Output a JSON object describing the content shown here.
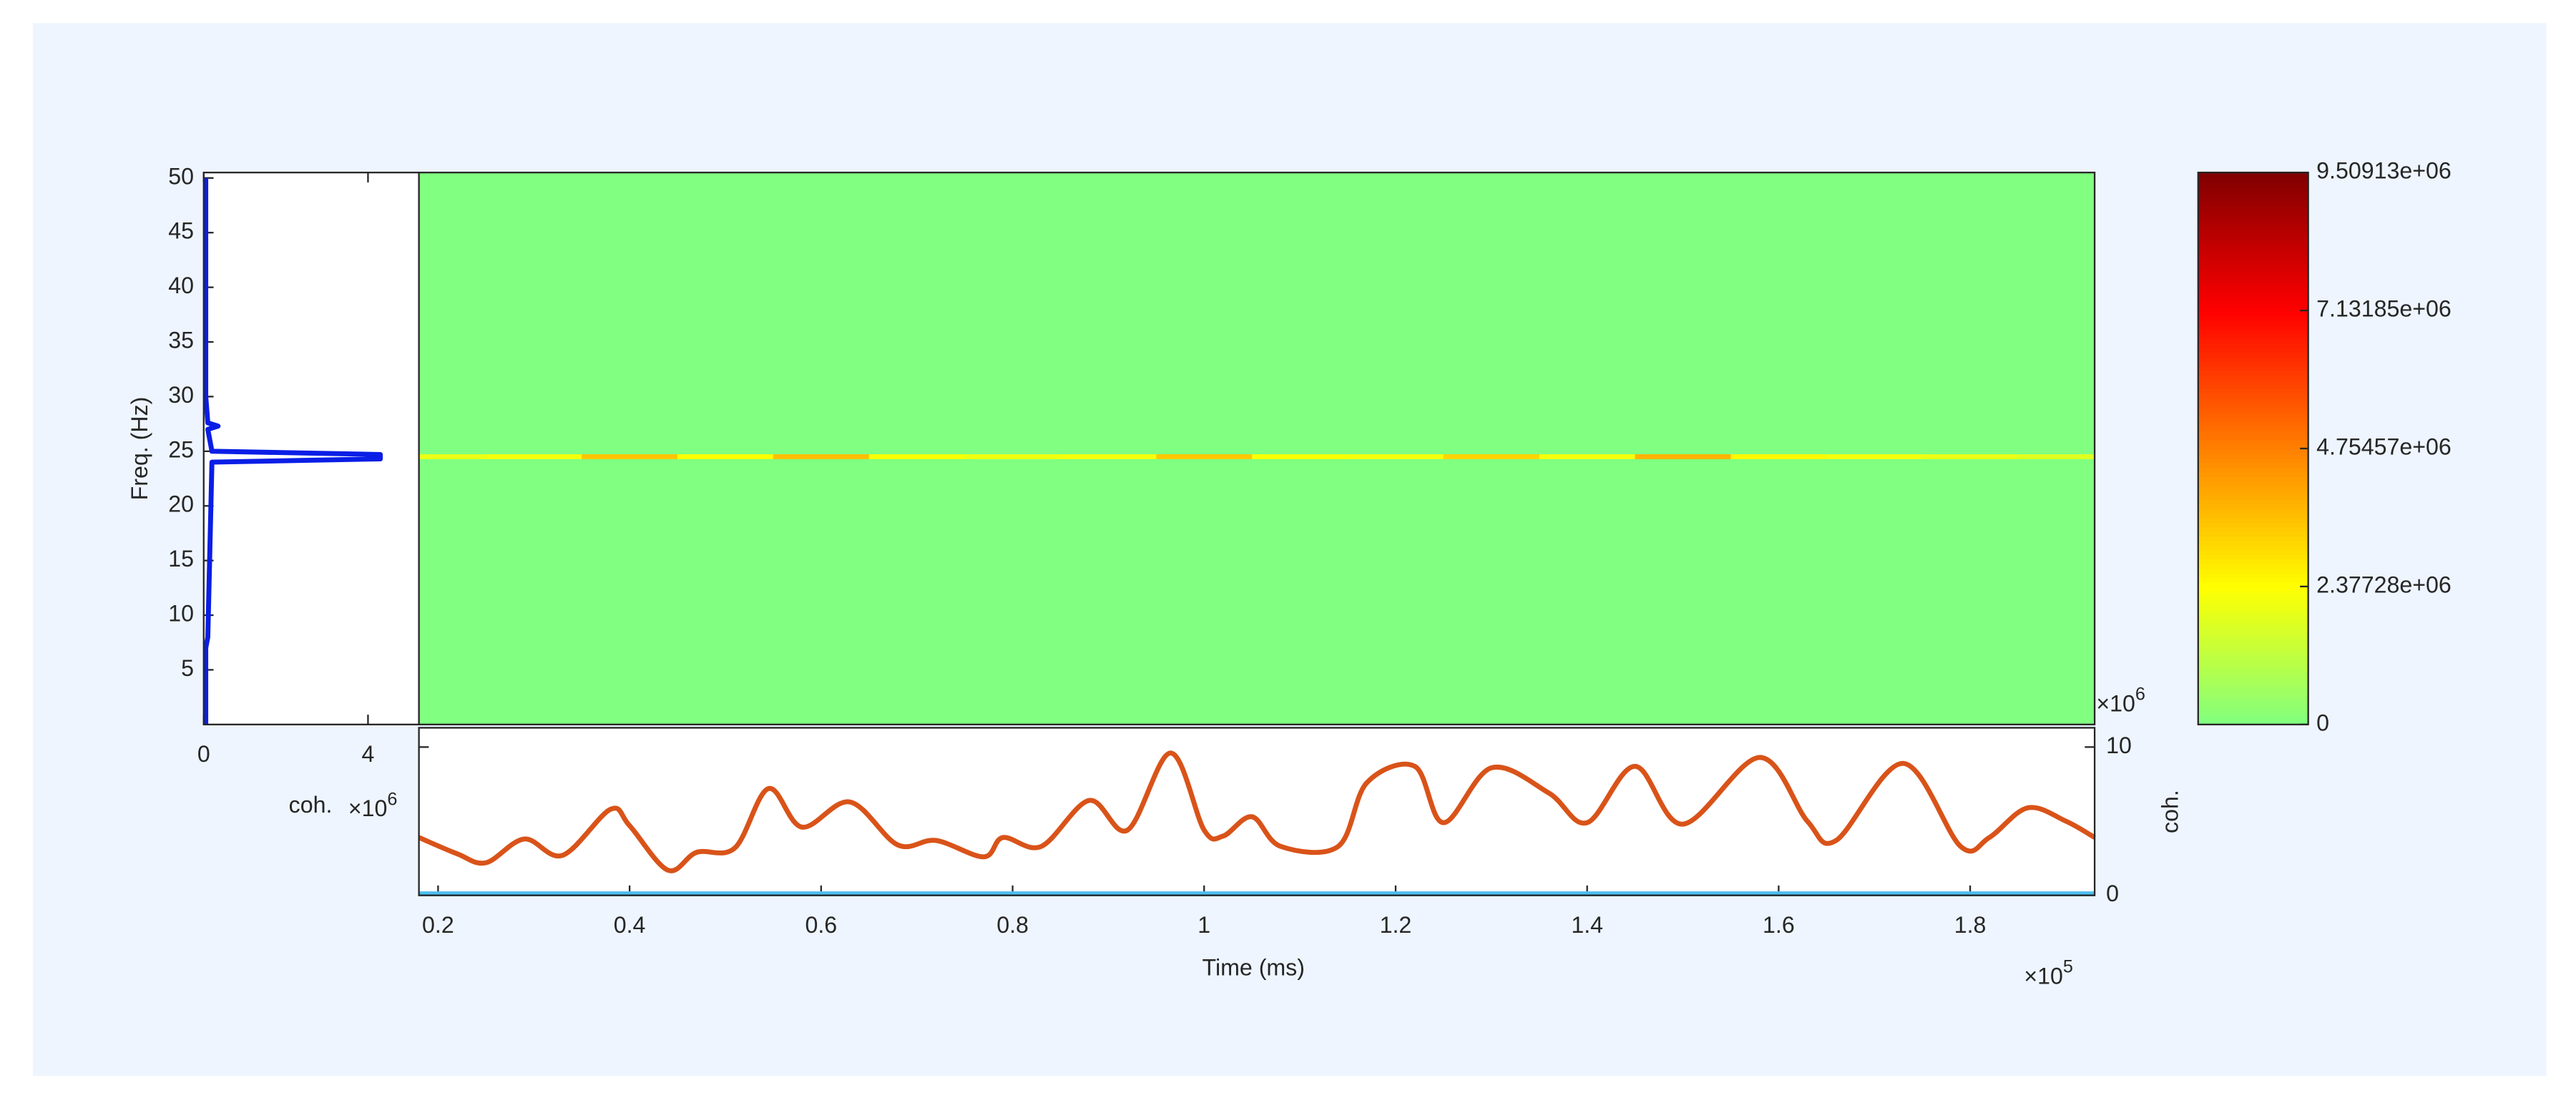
{
  "chart_data": [
    {
      "type": "line",
      "orientation": "horizontal",
      "ylabel": "Freq. (Hz)",
      "xlabel": "coh.",
      "x_multiplier": "×10",
      "x_multiplier_power": "6",
      "xlim": [
        0,
        5.24
      ],
      "xticks": [
        0,
        4
      ],
      "ylim": [
        0,
        50.5
      ],
      "yticks": [
        5,
        10,
        15,
        20,
        25,
        30,
        35,
        40,
        45,
        50
      ],
      "color": "#0a1ee6",
      "y": [
        0,
        7,
        8,
        24,
        24.3,
        24.5,
        24.7,
        25,
        27,
        27.3,
        27.6,
        30,
        50
      ],
      "values": [
        0.05,
        0.05,
        0.1,
        0.2,
        4.3,
        4.3,
        4.3,
        0.2,
        0.1,
        0.35,
        0.1,
        0.05,
        0.05
      ]
    },
    {
      "type": "heatmap",
      "xlim": [
        0.18,
        1.93
      ],
      "ylim": [
        0,
        50.5
      ],
      "clim": [
        0,
        9509130
      ],
      "colormap": [
        "#80ff80",
        "#ffff00",
        "#ff8000",
        "#ff0000",
        "#800000"
      ],
      "cticks": [
        0,
        {
          "value": 2377280,
          "label": "2.37728e+06"
        },
        {
          "value": 4754570,
          "label": "4.75457e+06"
        },
        {
          "value": 7131850,
          "label": "7.13185e+06"
        },
        {
          "value": 9509130,
          "label": "9.50913e+06"
        }
      ],
      "x": [
        0.2,
        0.3,
        0.4,
        0.5,
        0.6,
        0.7,
        0.8,
        0.9,
        1.0,
        1.1,
        1.2,
        1.3,
        1.4,
        1.5,
        1.6,
        1.7,
        1.8,
        1.9
      ],
      "y": [
        24.5
      ],
      "values": [
        [
          2000000,
          2200000,
          3500000,
          2400000,
          3600000,
          2300000,
          2100000,
          2200000,
          3400000,
          2300000,
          2200000,
          3200000,
          2200000,
          3800000,
          2500000,
          2200000,
          2000000,
          1800000
        ]
      ]
    },
    {
      "type": "line",
      "xlabel": "Time (ms)",
      "x_multiplier": "×10",
      "x_multiplier_power": "5",
      "y2label": "coh.",
      "y2_multiplier": "×10",
      "y2_multiplier_power": "6",
      "xlim": [
        0.18,
        1.93
      ],
      "xticks": [
        0.2,
        0.4,
        0.6,
        0.8,
        1,
        1.2,
        1.4,
        1.6,
        1.8
      ],
      "y2lim": [
        0,
        11.3
      ],
      "y2ticks": [
        0,
        10
      ],
      "series": [
        {
          "color": "#d95319",
          "axis": "y2",
          "x": [
            0.18,
            0.22,
            0.25,
            0.29,
            0.33,
            0.38,
            0.4,
            0.44,
            0.47,
            0.51,
            0.545,
            0.58,
            0.63,
            0.68,
            0.72,
            0.77,
            0.79,
            0.83,
            0.88,
            0.92,
            0.965,
            1.0,
            1.02,
            1.05,
            1.08,
            1.14,
            1.17,
            1.22,
            1.25,
            1.3,
            1.36,
            1.4,
            1.45,
            1.5,
            1.58,
            1.63,
            1.66,
            1.73,
            1.79,
            1.82,
            1.86,
            1.9,
            1.93
          ],
          "values": [
            3.9,
            2.8,
            2.2,
            3.8,
            2.7,
            5.8,
            4.7,
            1.7,
            2.9,
            3.2,
            7.2,
            4.6,
            6.3,
            3.4,
            3.7,
            2.6,
            3.9,
            3.3,
            6.4,
            4.4,
            9.6,
            4.4,
            4.0,
            5.3,
            3.3,
            3.3,
            7.6,
            8.7,
            4.9,
            8.6,
            6.9,
            4.9,
            8.7,
            4.8,
            9.3,
            5.0,
            3.7,
            8.9,
            3.3,
            3.9,
            5.9,
            5.0,
            3.9
          ]
        },
        {
          "color": "#4dbeee",
          "axis": "y2",
          "x": [
            0.18,
            1.93
          ],
          "values": [
            0.1,
            0.1
          ]
        }
      ]
    }
  ]
}
